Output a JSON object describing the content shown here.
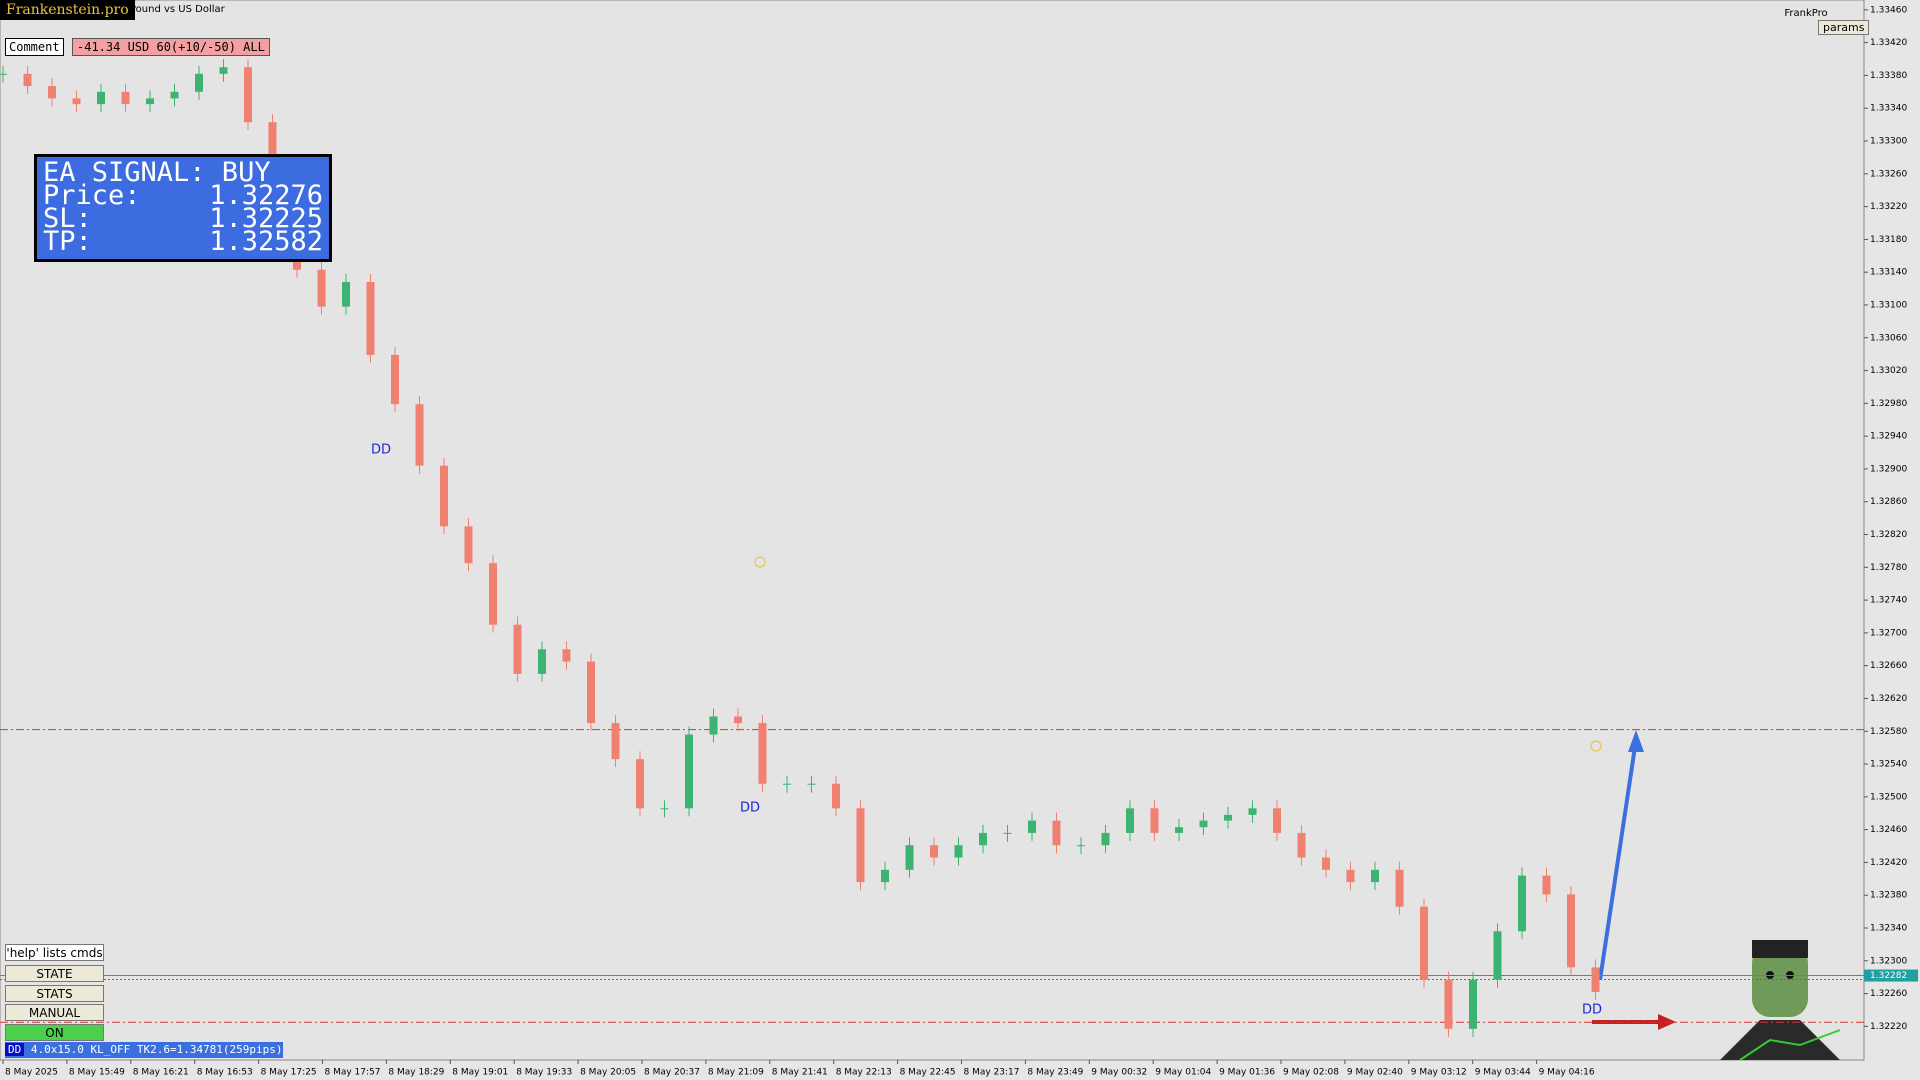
{
  "header": {
    "brand": "Frankenstein.pro",
    "symbol_name": "Pound vs US Dollar",
    "account": "FrankPro",
    "params_button": "params"
  },
  "comment": {
    "label": "Comment",
    "text": "-41.34 USD 60(+10/-50) ALL"
  },
  "signal_panel": {
    "title": "EA SIGNAL: BUY",
    "rows": [
      [
        "Price:",
        "1.32276"
      ],
      [
        "SL:",
        "1.32225"
      ],
      [
        "TP:",
        "1.32582"
      ]
    ]
  },
  "chart_data": {
    "type": "candlestick",
    "values": [
      1.33382,
      1.33367,
      1.33352,
      1.33345,
      1.3336,
      1.33345,
      1.33352,
      1.3336,
      1.33382,
      1.3339,
      1.33323,
      1.33248,
      1.33143,
      1.33098,
      1.33128,
      1.33039,
      1.32979,
      1.32904,
      1.3283,
      1.32785,
      1.3271,
      1.3265,
      1.3268,
      1.32665,
      1.3259,
      1.32546,
      1.32486,
      1.32486,
      1.32576,
      1.32598,
      1.3259,
      1.32516,
      1.32516,
      1.32516,
      1.32486,
      1.32396,
      1.32411,
      1.32441,
      1.32426,
      1.32441,
      1.32456,
      1.32456,
      1.32471,
      1.32441,
      1.32441,
      1.32456,
      1.32486,
      1.32456,
      1.32463,
      1.32471,
      1.32478,
      1.32486,
      1.32456,
      1.32426,
      1.32411,
      1.32396,
      1.32411,
      1.32366,
      1.32277,
      1.32217,
      1.32277,
      1.32336,
      1.32404,
      1.32381,
      1.32292,
      1.32262
    ],
    "ylim": [
      1.32179,
      1.33472
    ],
    "yticks": [
      {
        "value": 1.3346,
        "label": "1.33460"
      },
      {
        "value": 1.3342,
        "label": "1.33420"
      },
      {
        "value": 1.3338,
        "label": "1.33380"
      },
      {
        "value": 1.3334,
        "label": "1.33340"
      },
      {
        "value": 1.333,
        "label": "1.33300"
      },
      {
        "value": 1.3326,
        "label": "1.33260"
      },
      {
        "value": 1.3322,
        "label": "1.33220"
      },
      {
        "value": 1.3318,
        "label": "1.33180"
      },
      {
        "value": 1.3314,
        "label": "1.33140"
      },
      {
        "value": 1.331,
        "label": "1.33100"
      },
      {
        "value": 1.3306,
        "label": "1.33060"
      },
      {
        "value": 1.3302,
        "label": "1.33020"
      },
      {
        "value": 1.3298,
        "label": "1.32980"
      },
      {
        "value": 1.3294,
        "label": "1.32940"
      },
      {
        "value": 1.329,
        "label": "1.32900"
      },
      {
        "value": 1.3286,
        "label": "1.32860"
      },
      {
        "value": 1.3282,
        "label": "1.32820"
      },
      {
        "value": 1.3278,
        "label": "1.32780"
      },
      {
        "value": 1.3274,
        "label": "1.32740"
      },
      {
        "value": 1.327,
        "label": "1.32700"
      },
      {
        "value": 1.3266,
        "label": "1.32660"
      },
      {
        "value": 1.3262,
        "label": "1.32620"
      },
      {
        "value": 1.3258,
        "label": "1.32580"
      },
      {
        "value": 1.3254,
        "label": "1.32540"
      },
      {
        "value": 1.325,
        "label": "1.32500"
      },
      {
        "value": 1.3246,
        "label": "1.32460"
      },
      {
        "value": 1.3242,
        "label": "1.32420"
      },
      {
        "value": 1.3238,
        "label": "1.32380"
      },
      {
        "value": 1.3234,
        "label": "1.32340"
      },
      {
        "value": 1.323,
        "label": "1.32300"
      },
      {
        "value": 1.3226,
        "label": "1.32260"
      },
      {
        "value": 1.3222,
        "label": "1.32220"
      }
    ],
    "x_labels": [
      "8 May 2025",
      "8 May 15:49",
      "8 May 16:21",
      "8 May 16:53",
      "8 May 17:25",
      "8 May 17:57",
      "8 May 18:29",
      "8 May 19:01",
      "8 May 19:33",
      "8 May 20:05",
      "8 May 20:37",
      "8 May 21:09",
      "8 May 21:41",
      "8 May 22:13",
      "8 May 22:45",
      "8 May 23:17",
      "8 May 23:49",
      "9 May 00:32",
      "9 May 01:04",
      "9 May 01:36",
      "9 May 02:08",
      "9 May 02:40",
      "9 May 03:12",
      "9 May 03:44",
      "9 May 04:16"
    ],
    "up_color": "#3cb371",
    "down_color": "#f08070",
    "levels": [
      {
        "value": 1.32582,
        "color": "#e03030"
      },
      {
        "value": 1.32225,
        "color": "#e03030"
      }
    ],
    "current_price": 1.32282,
    "dd_labels": [
      "DD",
      "DD",
      "DD"
    ]
  },
  "controls": {
    "help": "'help' lists cmds",
    "buttons": [
      "STATE",
      "STATS",
      "MANUAL",
      "ON"
    ]
  },
  "status_bar": {
    "tag": "DD",
    "text": "4.0x15.0 KL_OFF TK2.6=1.34781(259pips)"
  }
}
